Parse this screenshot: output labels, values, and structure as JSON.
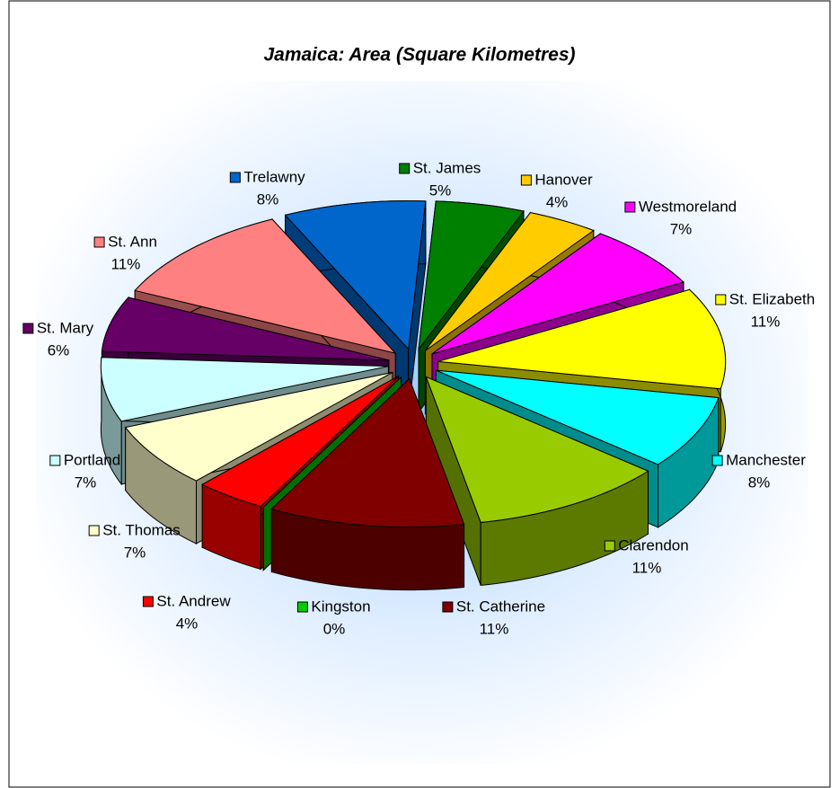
{
  "chart_data": {
    "type": "pie3d",
    "title": "Jamaica: Area (Square Kilometres)",
    "categories": [
      "St. James",
      "Hanover",
      "Westmoreland",
      "St. Elizabeth",
      "Manchester",
      "Clarendon",
      "St. Catherine",
      "Kingston",
      "St. Andrew",
      "St. Thomas",
      "Portland",
      "St. Mary",
      "St. Ann",
      "Trelawny"
    ],
    "values": [
      5,
      4,
      7,
      11,
      8,
      11,
      11,
      0,
      4,
      7,
      7,
      6,
      11,
      8
    ],
    "value_labels": [
      "5%",
      "4%",
      "7%",
      "11%",
      "8%",
      "11%",
      "11%",
      "0%",
      "4%",
      "7%",
      "7%",
      "6%",
      "11%",
      "8%"
    ],
    "colors": [
      "#008000",
      "#ffcc00",
      "#ff00ff",
      "#ffff00",
      "#00ffff",
      "#99cc00",
      "#800000",
      "#00cc00",
      "#ff0000",
      "#ffffcc",
      "#ccffff",
      "#660066",
      "#ff8080",
      "#0066cc"
    ]
  }
}
